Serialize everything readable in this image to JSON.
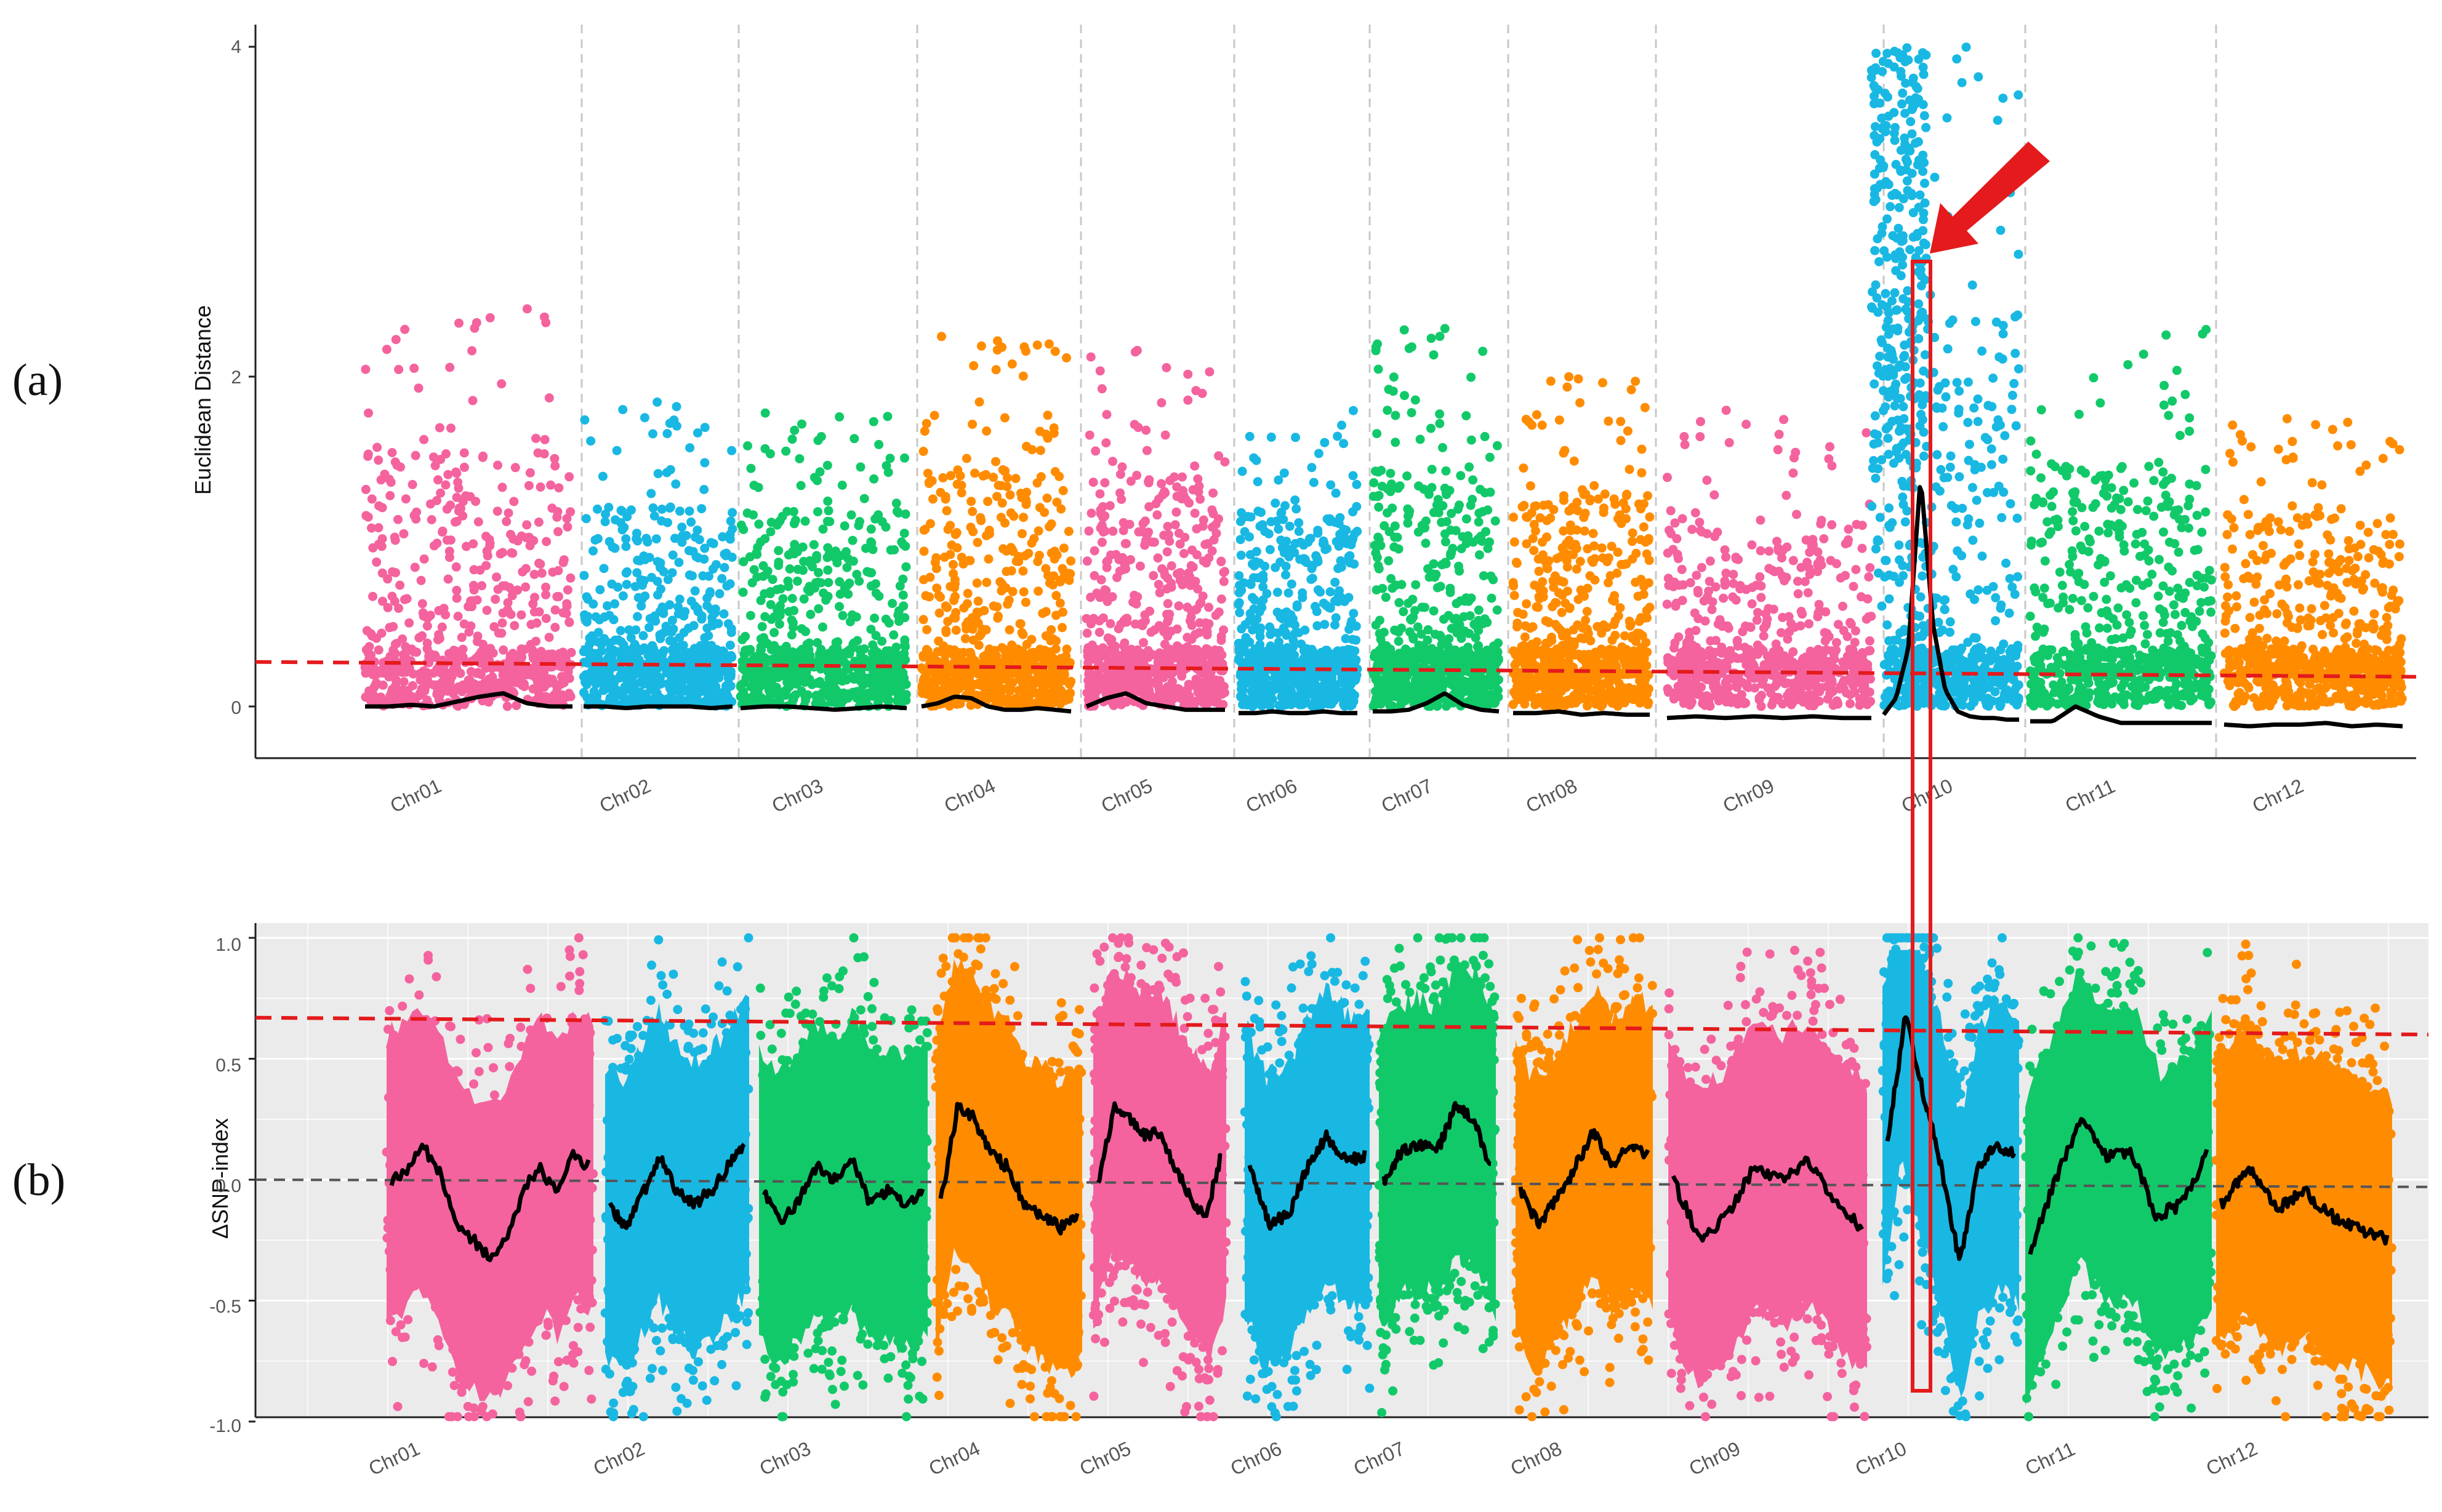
{
  "panels": [
    {
      "id": "a",
      "letter": "(a)"
    },
    {
      "id": "b",
      "letter": "(b)"
    }
  ],
  "colors": {
    "pink": "#f4639e",
    "blue": "#19b8e3",
    "green": "#12c96a",
    "orange": "#ff8c00",
    "threshold": "#e41a1c",
    "highlight": "#e41a1c",
    "smooth_line": "#000000",
    "panel_b_background": "#ebebeb"
  },
  "chart_data": [
    {
      "type": "scatter",
      "panel": "(a)",
      "ylabel": "Euclidean Distance",
      "xlabel": "",
      "ylim": [
        -0.3,
        4.05
      ],
      "yticks": [
        "0",
        "2",
        "4"
      ],
      "grid": false,
      "background": "white",
      "categories": [
        "Chr01",
        "Chr02",
        "Chr03",
        "Chr04",
        "Chr05",
        "Chr06",
        "Chr07",
        "Chr08",
        "Chr09",
        "Chr10",
        "Chr11",
        "Chr12"
      ],
      "category_colors": [
        "pink",
        "blue",
        "green",
        "orange",
        "pink",
        "blue",
        "green",
        "orange",
        "pink",
        "blue",
        "green",
        "orange"
      ],
      "category_peak": [
        2.45,
        1.85,
        1.8,
        2.25,
        2.2,
        1.8,
        2.3,
        2.0,
        1.8,
        4.0,
        2.3,
        1.75
      ],
      "threshold": {
        "style": "dashed",
        "y_start": 0.27,
        "y_end": 0.18
      },
      "smooth": [
        [
          0.0,
          0.0,
          0.01,
          0.0,
          0.03,
          0.06,
          0.08,
          0.02,
          0.0,
          0.0
        ],
        [
          0.0,
          0.0,
          -0.01,
          0.0,
          0.0,
          0.0,
          -0.01,
          0.0
        ],
        [
          -0.01,
          0.0,
          0.0,
          -0.01,
          -0.02,
          -0.01,
          0.0,
          -0.01
        ],
        [
          0.0,
          0.02,
          0.06,
          0.05,
          0.0,
          -0.02,
          -0.02,
          -0.01,
          -0.02,
          -0.03
        ],
        [
          0.0,
          0.05,
          0.08,
          0.02,
          0.0,
          -0.02,
          -0.02,
          -0.02
        ],
        [
          -0.04,
          -0.04,
          -0.03,
          -0.04,
          -0.04,
          -0.03,
          -0.04,
          -0.04
        ],
        [
          -0.03,
          -0.03,
          -0.02,
          0.02,
          0.08,
          0.01,
          -0.02,
          -0.03
        ],
        [
          -0.04,
          -0.04,
          -0.03,
          -0.05,
          -0.04,
          -0.05,
          -0.05
        ],
        [
          -0.07,
          -0.06,
          -0.07,
          -0.06,
          -0.07,
          -0.06,
          -0.07,
          -0.07
        ],
        [
          -0.05,
          0.05,
          0.35,
          1.4,
          0.5,
          0.1,
          -0.03,
          -0.06,
          -0.07,
          -0.07,
          -0.08,
          -0.08
        ],
        [
          -0.09,
          -0.09,
          0.0,
          -0.06,
          -0.1,
          -0.1,
          -0.1,
          -0.1,
          -0.1
        ],
        [
          -0.11,
          -0.12,
          -0.11,
          -0.11,
          -0.1,
          -0.12,
          -0.11,
          -0.12
        ]
      ],
      "annotation": {
        "type": "arrow",
        "points_to": "Chr10",
        "color": "red"
      }
    },
    {
      "type": "scatter",
      "panel": "(b)",
      "ylabel": "ΔSNP-index",
      "xlabel": "",
      "ylim": [
        -1.0,
        1.0
      ],
      "yticks": [
        "1.0",
        "0.5",
        "0.0",
        "-0.5",
        "-1.0"
      ],
      "grid": true,
      "background": "grey",
      "categories": [
        "Chr01",
        "Chr02",
        "Chr03",
        "Chr04",
        "Chr05",
        "Chr06",
        "Chr07",
        "Chr08",
        "Chr09",
        "Chr10",
        "Chr11",
        "Chr12"
      ],
      "category_colors": [
        "pink",
        "blue",
        "green",
        "orange",
        "pink",
        "blue",
        "green",
        "orange",
        "pink",
        "blue",
        "green",
        "orange"
      ],
      "threshold": {
        "style": "dashed",
        "y_start": 0.67,
        "y_end": 0.6
      },
      "zero_line": {
        "style": "dashed",
        "y": 0.0
      },
      "smooth": [
        [
          0.0,
          0.05,
          0.13,
          0.03,
          -0.2,
          -0.25,
          -0.32,
          -0.25,
          -0.05,
          0.05,
          -0.05,
          0.1,
          0.06
        ],
        [
          -0.12,
          -0.2,
          -0.05,
          0.1,
          -0.05,
          -0.1,
          -0.05,
          0.05,
          0.15
        ],
        [
          -0.05,
          -0.18,
          -0.08,
          0.05,
          0.0,
          0.08,
          -0.1,
          -0.05,
          -0.1,
          -0.05
        ],
        [
          -0.1,
          0.3,
          0.25,
          0.1,
          0.05,
          -0.12,
          -0.15,
          -0.2,
          -0.15
        ],
        [
          -0.03,
          0.3,
          0.25,
          0.18,
          0.2,
          0.05,
          -0.08,
          -0.15,
          0.1
        ],
        [
          0.05,
          -0.18,
          -0.15,
          0.05,
          0.18,
          0.08,
          0.1
        ],
        [
          0.0,
          0.12,
          0.15,
          0.12,
          0.3,
          0.25,
          0.05
        ],
        [
          -0.05,
          -0.18,
          -0.08,
          0.05,
          0.2,
          0.05,
          0.15,
          0.1
        ],
        [
          0.0,
          -0.25,
          -0.15,
          0.05,
          0.0,
          0.08,
          -0.1,
          -0.2
        ],
        [
          0.15,
          0.68,
          0.35,
          0.05,
          -0.35,
          0.05,
          0.15,
          0.1
        ],
        [
          -0.3,
          0.0,
          0.25,
          0.1,
          0.12,
          -0.15,
          -0.1,
          0.1
        ],
        [
          -0.1,
          0.05,
          -0.12,
          -0.05,
          -0.15,
          -0.2,
          -0.25
        ]
      ]
    }
  ]
}
